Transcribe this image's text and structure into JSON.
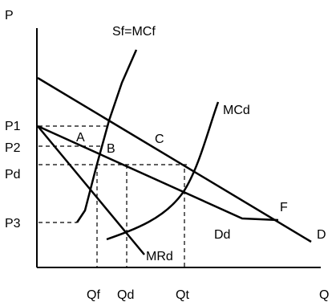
{
  "axes": {
    "y_label": "P",
    "x_label": "Q"
  },
  "price_labels": {
    "p1": "P1",
    "p2": "P2",
    "pd": "Pd",
    "p3": "P3"
  },
  "quantity_labels": {
    "qf": "Qf",
    "qd": "Qd",
    "qt": "Qt"
  },
  "curve_labels": {
    "sf": "Sf=MCf",
    "mcd": "MCd",
    "dd": "Dd",
    "d": "D",
    "mrd": "MRd"
  },
  "point_labels": {
    "a": "A",
    "b": "B",
    "c": "C",
    "f": "F"
  },
  "colors": {
    "line": "#000000",
    "background": "#ffffff"
  }
}
